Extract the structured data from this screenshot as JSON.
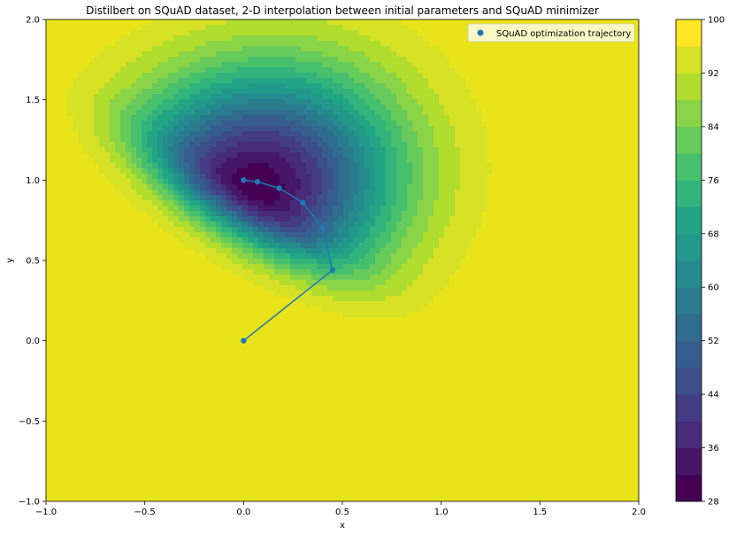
{
  "chart_data": {
    "type": "contour",
    "title": "Distilbert on SQuAD dataset, 2-D interpolation between initial parameters and SQuAD minimizer",
    "xlabel": "x",
    "ylabel": "y",
    "xlim": [
      -1.0,
      2.0
    ],
    "ylim": [
      -1.0,
      2.0
    ],
    "xticks": [
      "−1.0",
      "−0.5",
      "0.0",
      "0.5",
      "1.0",
      "1.5",
      "2.0"
    ],
    "xtick_values": [
      -1.0,
      -0.5,
      0.0,
      0.5,
      1.0,
      1.5,
      2.0
    ],
    "yticks": [
      "−1.0",
      "−0.5",
      "0.0",
      "0.5",
      "1.0",
      "1.5",
      "2.0"
    ],
    "ytick_values": [
      -1.0,
      -0.5,
      0.0,
      0.5,
      1.0,
      1.5,
      2.0
    ],
    "colorbar": {
      "min": 28,
      "max": 100,
      "step": 4,
      "ticks": [
        "28",
        "36",
        "44",
        "52",
        "60",
        "68",
        "76",
        "84",
        "92",
        "100"
      ],
      "tick_values": [
        28,
        36,
        44,
        52,
        60,
        68,
        76,
        84,
        92,
        100
      ],
      "colormap": "viridis"
    },
    "contour_field": {
      "center": [
        0.05,
        0.95
      ],
      "min_value": 29,
      "max_value": 100,
      "principal_axis_direction": [
        1.0,
        -0.8
      ],
      "spread_along_axis": 0.85,
      "spread_across_axis": 0.95,
      "steep_side_factor": 2.6,
      "steep_side": "lower-left"
    },
    "series": [
      {
        "name": "SQuAD optimization trajectory",
        "color": "#1f77b4",
        "x": [
          0.0,
          0.45,
          0.4,
          0.3,
          0.18,
          0.07,
          0.0
        ],
        "y": [
          0.0,
          0.44,
          0.7,
          0.86,
          0.95,
          0.99,
          1.0
        ]
      }
    ],
    "legend": {
      "position": "top-right",
      "background": "#fdfcd9"
    },
    "grid": false
  }
}
